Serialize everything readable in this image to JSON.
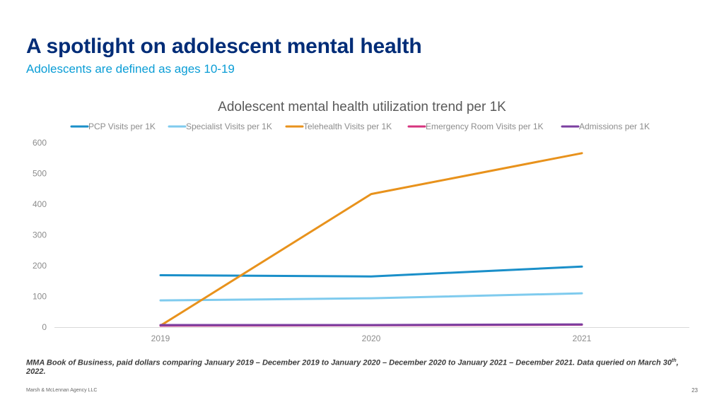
{
  "slide": {
    "title": "A spotlight on adolescent mental health",
    "subtitle": "Adolescents are defined as ages 10-19",
    "footnote_main": "MMA Book of Business, paid dollars comparing January 2019 – December 2019 to January 2020 – December 2020 to January 2021 – December 2021. Data queried on March 30",
    "footnote_sup": "th",
    "footnote_end": ", 2022.",
    "footer_company": "Marsh & McLennan Agency LLC",
    "page_number": "23"
  },
  "chart_data": {
    "type": "line",
    "title": "Adolescent mental health utilization trend per 1K",
    "xlabel": "",
    "ylabel": "",
    "x": [
      "2019",
      "2020",
      "2021"
    ],
    "ylim": [
      0,
      600
    ],
    "yticks": [
      0,
      100,
      200,
      300,
      400,
      500,
      600
    ],
    "grid": false,
    "legend_position": "top",
    "series": [
      {
        "name": "PCP Visits per 1K",
        "color": "#1a8fc9",
        "values": [
          169,
          165,
          197
        ]
      },
      {
        "name": "Specialist Visits per 1K",
        "color": "#7fcbee",
        "values": [
          87,
          94,
          110
        ]
      },
      {
        "name": "Telehealth Visits per 1K",
        "color": "#e8921c",
        "values": [
          5,
          433,
          566
        ]
      },
      {
        "name": "Emergency Room Visits per 1K",
        "color": "#d6347e",
        "values": [
          5,
          6,
          8
        ]
      },
      {
        "name": "Admissions per 1K",
        "color": "#7b3fa0",
        "values": [
          7,
          7,
          9
        ]
      }
    ]
  }
}
